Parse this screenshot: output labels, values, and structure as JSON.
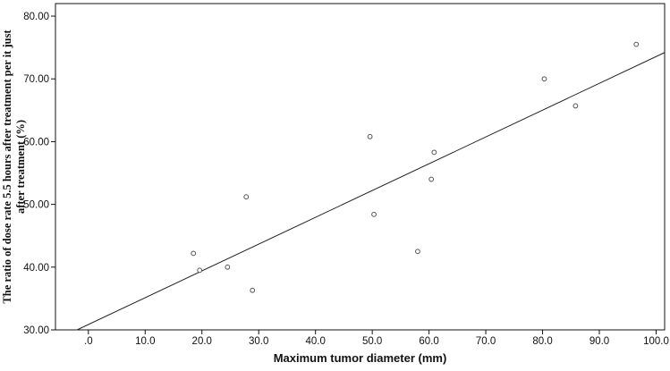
{
  "chart_data": {
    "type": "scatter",
    "title": "",
    "xlabel": "Maximum tumor diameter (mm)",
    "ylabel_lines": [
      "The ratio of dose rate 5.5 hours after treatment per it just",
      "after treatment (%)"
    ],
    "xlim": [
      -5.8,
      101.5
    ],
    "ylim": [
      30,
      82
    ],
    "x_ticks": [
      0,
      10,
      20,
      30,
      40,
      50,
      60,
      70,
      80,
      90,
      100
    ],
    "x_tick_labels": [
      ".0",
      "10.0",
      "20.0",
      "30.0",
      "40.0",
      "50.0",
      "60.0",
      "70.0",
      "80.0",
      "90.0",
      "100.0"
    ],
    "y_ticks": [
      30,
      40,
      50,
      60,
      70,
      80
    ],
    "y_tick_labels": [
      "30.00",
      "40.00",
      "50.00",
      "60.00",
      "70.00",
      "80.00"
    ],
    "grid": false,
    "legend": "none",
    "points": [
      {
        "x": 18.5,
        "y": 42.2
      },
      {
        "x": 19.6,
        "y": 39.5
      },
      {
        "x": 24.5,
        "y": 40.0
      },
      {
        "x": 27.8,
        "y": 51.2
      },
      {
        "x": 28.9,
        "y": 36.3
      },
      {
        "x": 49.6,
        "y": 60.8
      },
      {
        "x": 50.3,
        "y": 48.4
      },
      {
        "x": 58.0,
        "y": 42.5
      },
      {
        "x": 60.4,
        "y": 54.0
      },
      {
        "x": 60.9,
        "y": 58.3
      },
      {
        "x": 80.3,
        "y": 70.0
      },
      {
        "x": 85.8,
        "y": 65.7
      },
      {
        "x": 96.5,
        "y": 75.5
      }
    ],
    "fit_line": {
      "start": {
        "x": -2.0,
        "y": 30.0
      },
      "end": {
        "x": 101.5,
        "y": 74.2
      }
    },
    "colors": {
      "marker": "#555555",
      "line": "#222222",
      "axis": "#111111"
    }
  }
}
